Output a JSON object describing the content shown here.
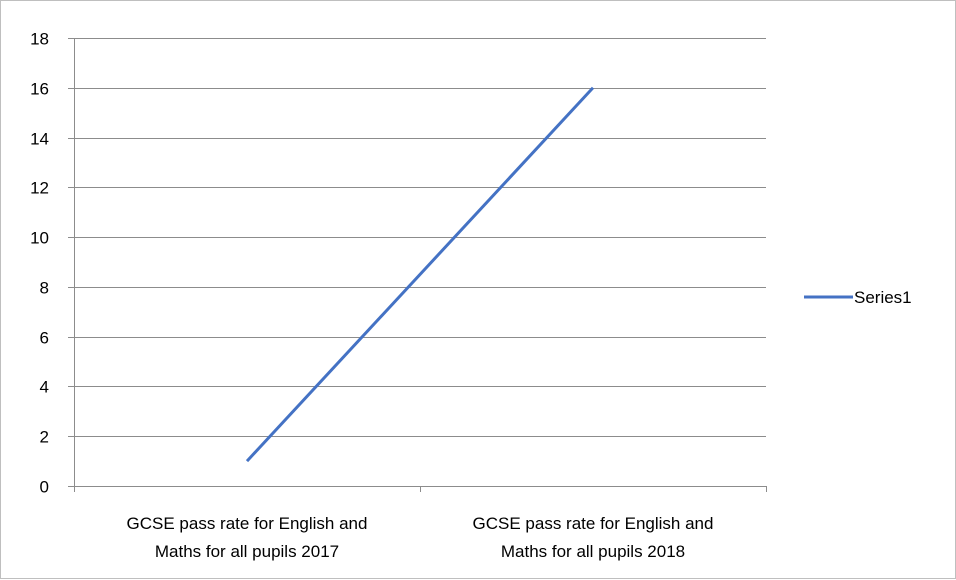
{
  "chart_data": {
    "type": "line",
    "categories": [
      [
        "GCSE pass rate for English and",
        "Maths for all pupils 2017"
      ],
      [
        "GCSE pass rate for English and",
        "Maths for all pupils 2018"
      ]
    ],
    "series": [
      {
        "name": "Series1",
        "values": [
          1,
          16
        ],
        "color": "#4472c4"
      }
    ],
    "title": "",
    "xlabel": "",
    "ylabel": "",
    "ylim": [
      0,
      18
    ],
    "ytick_step": 2,
    "grid": true,
    "legend": "right"
  }
}
